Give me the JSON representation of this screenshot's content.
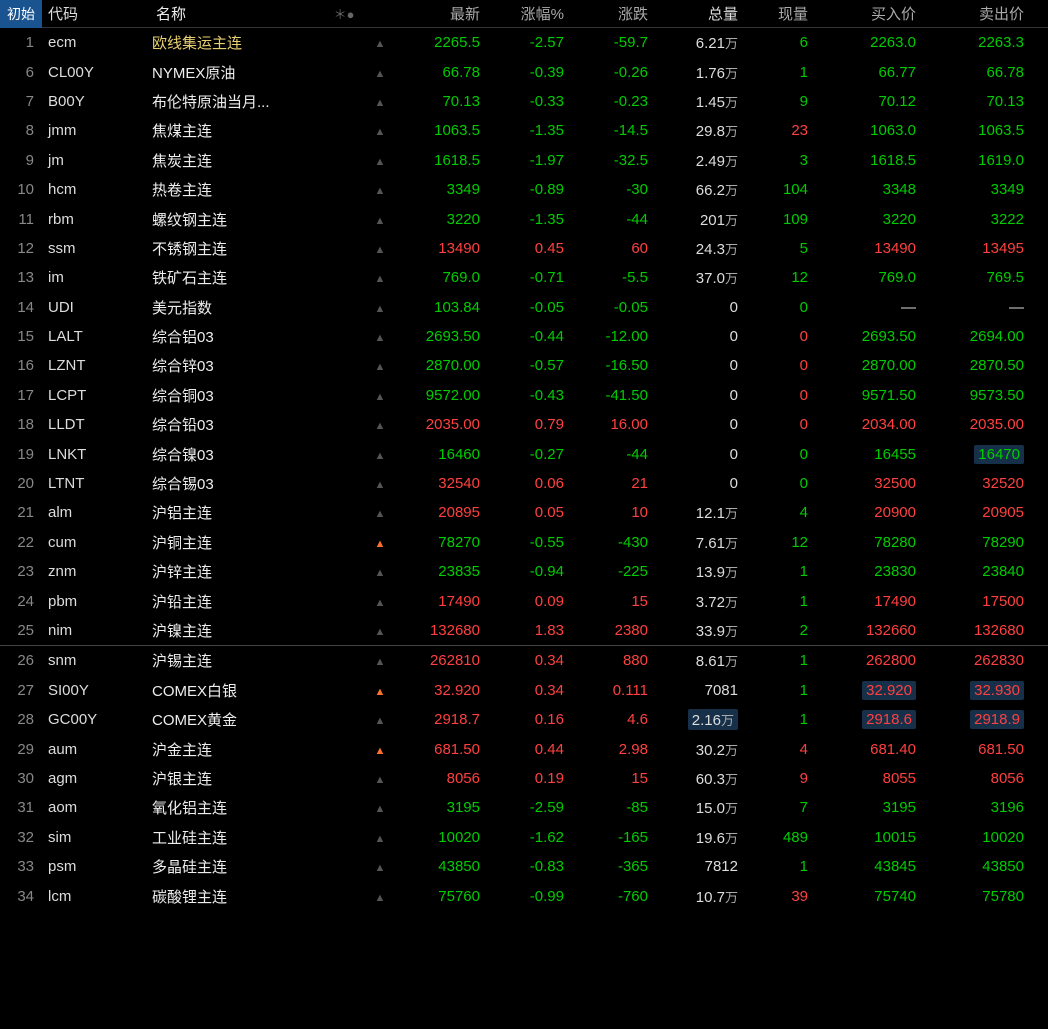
{
  "tab": "初始",
  "columns": {
    "code": "代码",
    "name": "名称",
    "marks": "＊●",
    "last": "最新",
    "chgpct": "涨幅%",
    "chg": "涨跌",
    "vol": "总量",
    "curvol": "现量",
    "bid": "买入价",
    "ask": "卖出价"
  },
  "colors": {
    "up": "#ff4040",
    "down": "#00cc00",
    "neutral": "#dddddd",
    "name_highlight": "#e6d070",
    "bg": "#000000",
    "header_tab_bg": "#1a5490",
    "cell_highlight_bg": "#16304a"
  },
  "rows": [
    {
      "idx": "1",
      "code": "ecm",
      "name": "欧线集运主连",
      "name_yellow": true,
      "bell": "normal",
      "last": "2265.5",
      "chgpct": "-2.57",
      "chg": "-59.7",
      "dir": "down",
      "vol": "6.21",
      "vol_unit": "万",
      "curvol": "6",
      "curvol_dir": "down",
      "bid": "2263.0",
      "ask": "2263.3",
      "ba_dir": "down"
    },
    {
      "idx": "6",
      "code": "CL00Y",
      "name": "NYMEX原油",
      "bell": "normal",
      "last": "66.78",
      "chgpct": "-0.39",
      "chg": "-0.26",
      "dir": "down",
      "vol": "1.76",
      "vol_unit": "万",
      "curvol": "1",
      "curvol_dir": "down",
      "bid": "66.77",
      "ask": "66.78",
      "ba_dir": "down"
    },
    {
      "idx": "7",
      "code": "B00Y",
      "name": "布伦特原油当月...",
      "bell": "normal",
      "last": "70.13",
      "chgpct": "-0.33",
      "chg": "-0.23",
      "dir": "down",
      "vol": "1.45",
      "vol_unit": "万",
      "curvol": "9",
      "curvol_dir": "down",
      "bid": "70.12",
      "ask": "70.13",
      "ba_dir": "down"
    },
    {
      "idx": "8",
      "code": "jmm",
      "name": "焦煤主连",
      "bell": "normal",
      "last": "1063.5",
      "chgpct": "-1.35",
      "chg": "-14.5",
      "dir": "down",
      "vol": "29.8",
      "vol_unit": "万",
      "curvol": "23",
      "curvol_dir": "up",
      "bid": "1063.0",
      "ask": "1063.5",
      "ba_dir": "down"
    },
    {
      "idx": "9",
      "code": "jm",
      "name": "焦炭主连",
      "bell": "normal",
      "last": "1618.5",
      "chgpct": "-1.97",
      "chg": "-32.5",
      "dir": "down",
      "vol": "2.49",
      "vol_unit": "万",
      "curvol": "3",
      "curvol_dir": "down",
      "bid": "1618.5",
      "ask": "1619.0",
      "ba_dir": "down"
    },
    {
      "idx": "10",
      "code": "hcm",
      "name": "热卷主连",
      "bell": "normal",
      "last": "3349",
      "chgpct": "-0.89",
      "chg": "-30",
      "dir": "down",
      "vol": "66.2",
      "vol_unit": "万",
      "curvol": "104",
      "curvol_dir": "down",
      "bid": "3348",
      "ask": "3349",
      "ba_dir": "down"
    },
    {
      "idx": "11",
      "code": "rbm",
      "name": "螺纹钢主连",
      "bell": "normal",
      "last": "3220",
      "chgpct": "-1.35",
      "chg": "-44",
      "dir": "down",
      "vol": "201",
      "vol_unit": "万",
      "curvol": "109",
      "curvol_dir": "down",
      "bid": "3220",
      "ask": "3222",
      "ba_dir": "down"
    },
    {
      "idx": "12",
      "code": "ssm",
      "name": "不锈钢主连",
      "bell": "normal",
      "last": "13490",
      "chgpct": "0.45",
      "chg": "60",
      "dir": "up",
      "vol": "24.3",
      "vol_unit": "万",
      "curvol": "5",
      "curvol_dir": "down",
      "bid": "13490",
      "ask": "13495",
      "ba_dir": "up"
    },
    {
      "idx": "13",
      "code": "im",
      "name": "铁矿石主连",
      "bell": "normal",
      "last": "769.0",
      "chgpct": "-0.71",
      "chg": "-5.5",
      "dir": "down",
      "vol": "37.0",
      "vol_unit": "万",
      "curvol": "12",
      "curvol_dir": "down",
      "bid": "769.0",
      "ask": "769.5",
      "ba_dir": "down"
    },
    {
      "idx": "14",
      "code": "UDI",
      "name": "美元指数",
      "bell": "normal",
      "last": "103.84",
      "chgpct": "-0.05",
      "chg": "-0.05",
      "dir": "down",
      "vol": "0",
      "vol_unit": "",
      "curvol": "0",
      "curvol_dir": "down",
      "bid": "—",
      "ask": "—",
      "ba_dir": "neutral"
    },
    {
      "idx": "15",
      "code": "LALT",
      "name": "综合铝03",
      "bell": "normal",
      "last": "2693.50",
      "chgpct": "-0.44",
      "chg": "-12.00",
      "dir": "down",
      "vol": "0",
      "vol_unit": "",
      "curvol": "0",
      "curvol_dir": "up",
      "bid": "2693.50",
      "ask": "2694.00",
      "ba_dir": "down"
    },
    {
      "idx": "16",
      "code": "LZNT",
      "name": "综合锌03",
      "bell": "normal",
      "last": "2870.00",
      "chgpct": "-0.57",
      "chg": "-16.50",
      "dir": "down",
      "vol": "0",
      "vol_unit": "",
      "curvol": "0",
      "curvol_dir": "up",
      "bid": "2870.00",
      "ask": "2870.50",
      "ba_dir": "down"
    },
    {
      "idx": "17",
      "code": "LCPT",
      "name": "综合铜03",
      "bell": "normal",
      "last": "9572.00",
      "chgpct": "-0.43",
      "chg": "-41.50",
      "dir": "down",
      "vol": "0",
      "vol_unit": "",
      "curvol": "0",
      "curvol_dir": "up",
      "bid": "9571.50",
      "ask": "9573.50",
      "ba_dir": "down"
    },
    {
      "idx": "18",
      "code": "LLDT",
      "name": "综合铅03",
      "bell": "normal",
      "last": "2035.00",
      "chgpct": "0.79",
      "chg": "16.00",
      "dir": "up",
      "vol": "0",
      "vol_unit": "",
      "curvol": "0",
      "curvol_dir": "up",
      "bid": "2034.00",
      "ask": "2035.00",
      "ba_dir": "up"
    },
    {
      "idx": "19",
      "code": "LNKT",
      "name": "综合镍03",
      "bell": "normal",
      "last": "16460",
      "chgpct": "-0.27",
      "chg": "-44",
      "dir": "down",
      "vol": "0",
      "vol_unit": "",
      "curvol": "0",
      "curvol_dir": "down",
      "bid": "16455",
      "ask": "16470",
      "ba_dir": "down",
      "ask_hl": true
    },
    {
      "idx": "20",
      "code": "LTNT",
      "name": "综合锡03",
      "bell": "normal",
      "last": "32540",
      "chgpct": "0.06",
      "chg": "21",
      "dir": "up",
      "vol": "0",
      "vol_unit": "",
      "curvol": "0",
      "curvol_dir": "down",
      "bid": "32500",
      "ask": "32520",
      "ba_dir": "up"
    },
    {
      "idx": "21",
      "code": "alm",
      "name": "沪铝主连",
      "bell": "normal",
      "last": "20895",
      "chgpct": "0.05",
      "chg": "10",
      "dir": "up",
      "vol": "12.1",
      "vol_unit": "万",
      "curvol": "4",
      "curvol_dir": "down",
      "bid": "20900",
      "ask": "20905",
      "ba_dir": "up"
    },
    {
      "idx": "22",
      "code": "cum",
      "name": "沪铜主连",
      "bell": "active",
      "last": "78270",
      "chgpct": "-0.55",
      "chg": "-430",
      "dir": "down",
      "vol": "7.61",
      "vol_unit": "万",
      "curvol": "12",
      "curvol_dir": "down",
      "bid": "78280",
      "ask": "78290",
      "ba_dir": "down"
    },
    {
      "idx": "23",
      "code": "znm",
      "name": "沪锌主连",
      "bell": "normal",
      "last": "23835",
      "chgpct": "-0.94",
      "chg": "-225",
      "dir": "down",
      "vol": "13.9",
      "vol_unit": "万",
      "curvol": "1",
      "curvol_dir": "down",
      "bid": "23830",
      "ask": "23840",
      "ba_dir": "down"
    },
    {
      "idx": "24",
      "code": "pbm",
      "name": "沪铅主连",
      "bell": "normal",
      "last": "17490",
      "chgpct": "0.09",
      "chg": "15",
      "dir": "up",
      "vol": "3.72",
      "vol_unit": "万",
      "curvol": "1",
      "curvol_dir": "down",
      "bid": "17490",
      "ask": "17500",
      "ba_dir": "up"
    },
    {
      "idx": "25",
      "code": "nim",
      "name": "沪镍主连",
      "bell": "normal",
      "last": "132680",
      "chgpct": "1.83",
      "chg": "2380",
      "dir": "up",
      "vol": "33.9",
      "vol_unit": "万",
      "curvol": "2",
      "curvol_dir": "down",
      "bid": "132660",
      "ask": "132680",
      "ba_dir": "up",
      "sep_after": true
    },
    {
      "idx": "26",
      "code": "snm",
      "name": "沪锡主连",
      "bell": "normal",
      "last": "262810",
      "chgpct": "0.34",
      "chg": "880",
      "dir": "up",
      "vol": "8.61",
      "vol_unit": "万",
      "curvol": "1",
      "curvol_dir": "down",
      "bid": "262800",
      "ask": "262830",
      "ba_dir": "up"
    },
    {
      "idx": "27",
      "code": "SI00Y",
      "name": "COMEX白银",
      "bell": "active",
      "last": "32.920",
      "chgpct": "0.34",
      "chg": "0.111",
      "dir": "up",
      "vol": "7081",
      "vol_unit": "",
      "curvol": "1",
      "curvol_dir": "down",
      "bid": "32.920",
      "ask": "32.930",
      "ba_dir": "up",
      "bid_hl": true,
      "ask_hl": true
    },
    {
      "idx": "28",
      "code": "GC00Y",
      "name": "COMEX黄金",
      "bell": "normal",
      "last": "2918.7",
      "chgpct": "0.16",
      "chg": "4.6",
      "dir": "up",
      "vol": "2.16",
      "vol_unit": "万",
      "vol_hl": true,
      "curvol": "1",
      "curvol_dir": "down",
      "bid": "2918.6",
      "ask": "2918.9",
      "ba_dir": "up",
      "bid_hl": true,
      "ask_hl": true
    },
    {
      "idx": "29",
      "code": "aum",
      "name": "沪金主连",
      "bell": "active",
      "last": "681.50",
      "chgpct": "0.44",
      "chg": "2.98",
      "dir": "up",
      "vol": "30.2",
      "vol_unit": "万",
      "curvol": "4",
      "curvol_dir": "up",
      "bid": "681.40",
      "ask": "681.50",
      "ba_dir": "up"
    },
    {
      "idx": "30",
      "code": "agm",
      "name": "沪银主连",
      "bell": "normal",
      "last": "8056",
      "chgpct": "0.19",
      "chg": "15",
      "dir": "up",
      "vol": "60.3",
      "vol_unit": "万",
      "curvol": "9",
      "curvol_dir": "up",
      "bid": "8055",
      "ask": "8056",
      "ba_dir": "up"
    },
    {
      "idx": "31",
      "code": "aom",
      "name": "氧化铝主连",
      "bell": "normal",
      "last": "3195",
      "chgpct": "-2.59",
      "chg": "-85",
      "dir": "down",
      "vol": "15.0",
      "vol_unit": "万",
      "curvol": "7",
      "curvol_dir": "down",
      "bid": "3195",
      "ask": "3196",
      "ba_dir": "down"
    },
    {
      "idx": "32",
      "code": "sim",
      "name": "工业硅主连",
      "bell": "normal",
      "last": "10020",
      "chgpct": "-1.62",
      "chg": "-165",
      "dir": "down",
      "vol": "19.6",
      "vol_unit": "万",
      "curvol": "489",
      "curvol_dir": "down",
      "bid": "10015",
      "ask": "10020",
      "ba_dir": "down"
    },
    {
      "idx": "33",
      "code": "psm",
      "name": "多晶硅主连",
      "bell": "normal",
      "last": "43850",
      "chgpct": "-0.83",
      "chg": "-365",
      "dir": "down",
      "vol": "7812",
      "vol_unit": "",
      "curvol": "1",
      "curvol_dir": "down",
      "bid": "43845",
      "ask": "43850",
      "ba_dir": "down"
    },
    {
      "idx": "34",
      "code": "lcm",
      "name": "碳酸锂主连",
      "bell": "normal",
      "last": "75760",
      "chgpct": "-0.99",
      "chg": "-760",
      "dir": "down",
      "vol": "10.7",
      "vol_unit": "万",
      "curvol": "39",
      "curvol_dir": "up",
      "bid": "75740",
      "ask": "75780",
      "ba_dir": "down"
    }
  ]
}
